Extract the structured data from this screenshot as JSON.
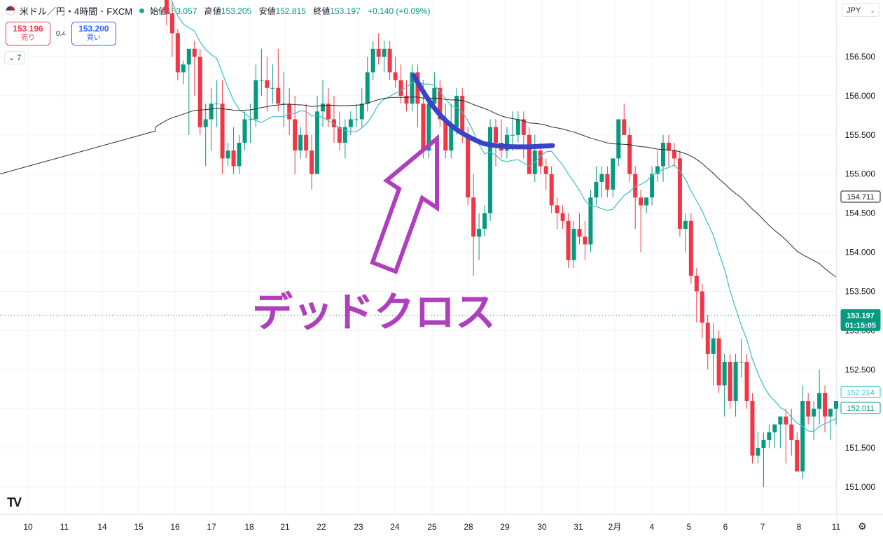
{
  "header": {
    "symbol": "米ドル／円・4時間・FXCM",
    "open_label": "始値",
    "open": "153.057",
    "high_label": "高値",
    "high": "153.205",
    "low_label": "安値",
    "low": "152.815",
    "close_label": "終値",
    "close": "153.197",
    "change": "+0.140 (+0.09%)"
  },
  "trade": {
    "sell_price": "153.196",
    "sell_label": "売り",
    "spread": "0.4",
    "buy_price": "153.200",
    "buy_label": "買い"
  },
  "indicator_count": "7",
  "currency": "JPY",
  "annotation_text": "デッドクロス",
  "colors": {
    "up": "#089981",
    "down": "#f23645",
    "ma_short": "#3ac1c9",
    "ma_long": "#2b2b2b",
    "annotation": "#b03fbd",
    "curve": "#3a44c8"
  },
  "chart_data": {
    "type": "candlestick",
    "title": "米ドル／円・4時間・FXCM",
    "ylim": [
      150.85,
      157.6
    ],
    "y_ticks": [
      156.5,
      156.0,
      155.5,
      155.0,
      154.5,
      154.0,
      153.5,
      153.0,
      152.5,
      152.0,
      151.5,
      151.0
    ],
    "y_tick_labels": [
      "156.500",
      "156.000",
      "155.500",
      "155.000",
      "154.500",
      "154.000",
      "153.500",
      "153.000",
      "152.500",
      "152.000",
      "151.500",
      "151.000"
    ],
    "x_tick_labels": [
      "10",
      "11",
      "14",
      "15",
      "16",
      "17",
      "18",
      "21",
      "22",
      "23",
      "24",
      "25",
      "28",
      "29",
      "30",
      "31",
      "2月",
      "4",
      "5",
      "6",
      "7",
      "8",
      "11"
    ],
    "candles": [
      [
        157.6,
        157.6,
        157.35,
        157.45
      ],
      [
        157.45,
        157.55,
        157.35,
        157.5
      ],
      [
        157.5,
        157.55,
        156.9,
        157.05
      ],
      [
        157.05,
        157.2,
        156.5,
        156.8
      ],
      [
        156.8,
        156.85,
        156.2,
        156.3
      ],
      [
        156.3,
        156.45,
        156.15,
        156.4
      ],
      [
        156.4,
        156.6,
        155.5,
        156.6
      ],
      [
        156.6,
        156.7,
        156.0,
        156.5
      ],
      [
        156.5,
        156.6,
        155.5,
        155.6
      ],
      [
        155.6,
        155.9,
        155.1,
        155.7
      ],
      [
        155.7,
        156.1,
        155.3,
        155.9
      ],
      [
        155.9,
        156.2,
        155.6,
        155.9
      ],
      [
        155.9,
        156.2,
        155.0,
        155.2
      ],
      [
        155.2,
        155.4,
        155.1,
        155.3
      ],
      [
        155.3,
        155.6,
        155.0,
        155.1
      ],
      [
        155.1,
        155.5,
        155.0,
        155.4
      ],
      [
        155.4,
        155.8,
        155.3,
        155.7
      ],
      [
        155.7,
        155.9,
        155.4,
        155.7
      ],
      [
        155.7,
        156.4,
        155.6,
        156.2
      ],
      [
        156.2,
        156.6,
        156.0,
        156.2
      ],
      [
        156.2,
        156.5,
        155.8,
        156.1
      ],
      [
        156.1,
        156.4,
        155.9,
        156.1
      ],
      [
        156.1,
        156.6,
        155.8,
        155.9
      ],
      [
        155.9,
        156.3,
        155.6,
        155.9
      ],
      [
        155.9,
        156.1,
        155.5,
        155.7
      ],
      [
        155.7,
        156.0,
        155.0,
        155.3
      ],
      [
        155.3,
        155.6,
        155.2,
        155.5
      ],
      [
        155.5,
        155.9,
        155.2,
        155.3
      ],
      [
        155.3,
        155.5,
        154.8,
        155.0
      ],
      [
        155.0,
        156.0,
        155.0,
        155.8
      ],
      [
        155.8,
        156.2,
        155.6,
        155.9
      ],
      [
        155.9,
        156.1,
        155.6,
        155.7
      ],
      [
        155.7,
        156.0,
        155.4,
        155.6
      ],
      [
        155.6,
        155.8,
        155.3,
        155.4
      ],
      [
        155.4,
        155.7,
        155.2,
        155.6
      ],
      [
        155.6,
        155.8,
        155.5,
        155.7
      ],
      [
        155.7,
        155.9,
        155.6,
        155.7
      ],
      [
        155.7,
        156.1,
        155.6,
        155.9
      ],
      [
        155.9,
        156.5,
        155.8,
        156.3
      ],
      [
        156.3,
        156.7,
        156.2,
        156.6
      ],
      [
        156.6,
        156.8,
        156.4,
        156.5
      ],
      [
        156.5,
        156.7,
        156.3,
        156.6
      ],
      [
        156.6,
        156.7,
        156.2,
        156.3
      ],
      [
        156.3,
        156.5,
        156.1,
        156.2
      ],
      [
        156.2,
        156.4,
        155.9,
        156.0
      ],
      [
        156.0,
        156.2,
        155.8,
        155.9
      ],
      [
        155.9,
        156.4,
        155.8,
        156.3
      ],
      [
        156.3,
        156.4,
        155.6,
        155.9
      ],
      [
        155.9,
        156.2,
        155.2,
        155.3
      ],
      [
        155.3,
        156.0,
        155.2,
        155.9
      ],
      [
        155.9,
        156.3,
        155.8,
        156.1
      ],
      [
        156.1,
        156.2,
        155.6,
        155.7
      ],
      [
        155.7,
        155.9,
        155.2,
        155.3
      ],
      [
        155.3,
        155.9,
        155.2,
        155.6
      ],
      [
        155.6,
        156.1,
        155.5,
        156.0
      ],
      [
        156.0,
        156.1,
        155.4,
        155.5
      ],
      [
        155.5,
        155.6,
        154.6,
        154.7
      ],
      [
        154.7,
        155.0,
        153.7,
        154.2
      ],
      [
        154.2,
        154.5,
        153.9,
        154.3
      ],
      [
        154.3,
        154.6,
        154.2,
        154.5
      ],
      [
        154.5,
        155.7,
        154.4,
        155.6
      ],
      [
        155.6,
        155.7,
        155.1,
        155.4
      ],
      [
        155.4,
        155.7,
        155.2,
        155.3
      ],
      [
        155.3,
        155.6,
        155.2,
        155.5
      ],
      [
        155.5,
        155.8,
        155.3,
        155.5
      ],
      [
        155.5,
        155.8,
        155.4,
        155.7
      ],
      [
        155.7,
        155.8,
        155.2,
        155.5
      ],
      [
        155.5,
        155.6,
        155.0,
        155.0
      ],
      [
        155.0,
        155.5,
        154.9,
        155.3
      ],
      [
        155.3,
        155.4,
        155.0,
        155.1
      ],
      [
        155.1,
        155.2,
        154.8,
        155.0
      ],
      [
        155.0,
        155.1,
        154.5,
        154.6
      ],
      [
        154.6,
        154.7,
        154.3,
        154.5
      ],
      [
        154.5,
        154.6,
        154.3,
        154.4
      ],
      [
        154.4,
        154.5,
        153.8,
        153.9
      ],
      [
        153.9,
        154.4,
        153.8,
        154.3
      ],
      [
        154.3,
        154.5,
        154.1,
        154.2
      ],
      [
        154.2,
        154.4,
        153.9,
        154.1
      ],
      [
        154.1,
        154.8,
        154.0,
        154.7
      ],
      [
        154.7,
        155.1,
        154.6,
        154.9
      ],
      [
        154.9,
        155.1,
        154.7,
        155.0
      ],
      [
        155.0,
        155.1,
        154.7,
        154.8
      ],
      [
        154.8,
        155.2,
        154.7,
        155.2
      ],
      [
        155.2,
        155.7,
        155.1,
        155.7
      ],
      [
        155.7,
        155.9,
        155.5,
        155.5
      ],
      [
        155.5,
        155.6,
        154.9,
        155.0
      ],
      [
        155.0,
        155.1,
        154.3,
        154.7
      ],
      [
        154.7,
        154.8,
        154.0,
        154.6
      ],
      [
        154.6,
        154.7,
        154.5,
        154.7
      ],
      [
        154.7,
        155.1,
        154.6,
        155.0
      ],
      [
        155.0,
        155.3,
        154.9,
        155.1
      ],
      [
        155.1,
        155.5,
        154.9,
        155.4
      ],
      [
        155.4,
        155.5,
        155.1,
        155.3
      ],
      [
        155.3,
        155.4,
        155.1,
        155.2
      ],
      [
        155.2,
        155.3,
        154.2,
        154.3
      ],
      [
        154.3,
        154.5,
        154.0,
        154.4
      ],
      [
        154.4,
        154.5,
        153.6,
        153.7
      ],
      [
        153.7,
        153.8,
        153.1,
        153.5
      ],
      [
        153.5,
        153.6,
        152.9,
        153.1
      ],
      [
        153.1,
        153.2,
        152.5,
        152.7
      ],
      [
        152.7,
        153.1,
        152.3,
        152.9
      ],
      [
        152.9,
        153.0,
        152.2,
        152.3
      ],
      [
        152.3,
        152.7,
        151.9,
        152.6
      ],
      [
        152.6,
        152.7,
        152.0,
        152.1
      ],
      [
        152.1,
        152.7,
        151.9,
        152.6
      ],
      [
        152.6,
        152.9,
        152.4,
        152.6
      ],
      [
        152.6,
        152.7,
        152.0,
        152.1
      ],
      [
        152.1,
        152.2,
        151.3,
        151.4
      ],
      [
        151.4,
        151.7,
        151.3,
        151.5
      ],
      [
        151.5,
        151.7,
        151.0,
        151.6
      ],
      [
        151.6,
        151.8,
        151.5,
        151.7
      ],
      [
        151.7,
        151.8,
        151.5,
        151.8
      ],
      [
        151.8,
        151.9,
        151.5,
        151.9
      ],
      [
        151.9,
        152.0,
        151.3,
        151.8
      ],
      [
        151.8,
        152.0,
        151.4,
        151.6
      ],
      [
        151.6,
        151.7,
        151.2,
        151.2
      ],
      [
        151.2,
        152.3,
        151.1,
        152.1
      ],
      [
        152.1,
        152.2,
        151.8,
        151.9
      ],
      [
        151.9,
        152.1,
        151.6,
        152.0
      ],
      [
        152.0,
        152.5,
        151.8,
        152.2
      ],
      [
        152.2,
        152.3,
        151.7,
        151.9
      ],
      [
        151.9,
        152.0,
        151.6,
        152.0
      ],
      [
        152.0,
        152.1,
        151.8,
        152.1
      ]
    ],
    "price_labels": [
      {
        "value": 154.711,
        "label": "154.711",
        "series": "long"
      },
      {
        "value": 153.197,
        "label": "153.197",
        "sub": "01:15:05",
        "series": "last"
      },
      {
        "value": 152.214,
        "label": "152.214",
        "series": "short"
      },
      {
        "value": 152.011,
        "label": "152.011",
        "series": "short2"
      }
    ]
  }
}
